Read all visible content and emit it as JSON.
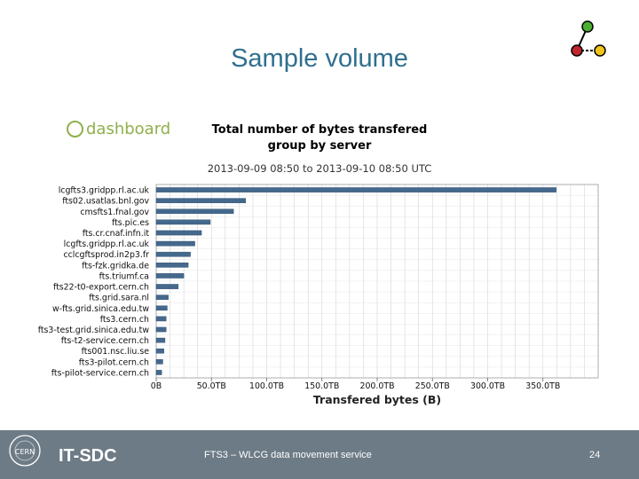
{
  "slide": {
    "title": "Sample volume",
    "footer_brand": "IT-SDC",
    "footer_text": "FTS3 – WLCG data movement service",
    "page_number": "24",
    "cern_logo_text": "CERN",
    "dashboard_logo_text": "dashboard"
  },
  "colors": {
    "title": "#2f6f8f",
    "bar": "#45698d",
    "footer": "#6c7b86",
    "logo_green": "#4caf33",
    "logo_red": "#c0262d",
    "logo_yellow": "#f0c419"
  },
  "icons": [
    "node-graph-logo-icon",
    "cern-logo-icon",
    "dashboard-logo-icon"
  ],
  "chart_data": {
    "type": "bar",
    "orientation": "horizontal",
    "title": "Total number of bytes transfered",
    "subtitle": "group by server",
    "date_range": "2013-09-09 08:50 to 2013-09-10 08:50 UTC",
    "xlabel": "Transfered bytes (B)",
    "ylabel": "",
    "xlim": [
      0,
      400
    ],
    "x_unit": "TB",
    "x_ticks": [
      "0B",
      "50.0TB",
      "100.0TB",
      "150.0TB",
      "200.0TB",
      "250.0TB",
      "300.0TB",
      "350.0TB"
    ],
    "grid": true,
    "categories": [
      "lcgfts3.gridpp.rl.ac.uk",
      "fts02.usatlas.bnl.gov",
      "cmsfts1.fnal.gov",
      "fts.pic.es",
      "fts.cr.cnaf.infn.it",
      "lcgfts.gridpp.rl.ac.uk",
      "cclcgftsprod.in2p3.fr",
      "fts-fzk.gridka.de",
      "fts.triumf.ca",
      "fts22-t0-export.cern.ch",
      "fts.grid.sara.nl",
      "w-fts.grid.sinica.edu.tw",
      "fts3.cern.ch",
      "fts3-test.grid.sinica.edu.tw",
      "fts-t2-service.cern.ch",
      "fts001.nsc.liu.se",
      "fts3-pilot.cern.ch",
      "fts-pilot-service.cern.ch"
    ],
    "values": [
      362,
      81,
      70,
      49,
      41,
      35,
      31,
      29,
      25,
      20,
      11,
      10,
      9,
      9,
      8,
      7,
      6,
      5
    ]
  }
}
